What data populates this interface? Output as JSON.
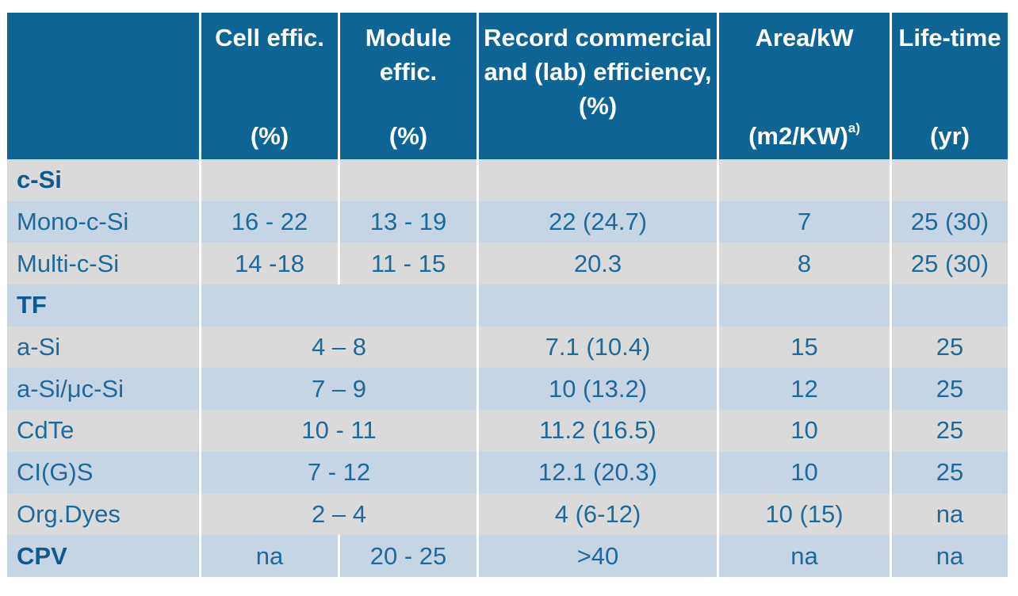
{
  "header": {
    "col0": "",
    "cell": {
      "label": "Cell effic.",
      "unit": "(%)"
    },
    "module": {
      "label": "Module effic.",
      "unit": "(%)"
    },
    "record": {
      "label": "Record commercial and (lab) efficiency,",
      "unit": "(%)"
    },
    "area": {
      "label": "Area/kW",
      "unit": "(m2/KW)",
      "unit_sup": "a)"
    },
    "life": {
      "label": "Life-time",
      "unit": "(yr)"
    }
  },
  "rows": [
    {
      "type": "section",
      "name": "c-Si",
      "values": [
        "",
        "",
        "",
        "",
        ""
      ]
    },
    {
      "type": "data",
      "name": "Mono-c-Si",
      "values": [
        "16 - 22",
        "13 - 19",
        "22 (24.7)",
        "7",
        "25 (30)"
      ]
    },
    {
      "type": "data",
      "name": "Multi-c-Si",
      "values": [
        "14 -18",
        "11 - 15",
        "20.3",
        "8",
        "25 (30)"
      ]
    },
    {
      "type": "section",
      "name": "TF",
      "values": [
        "",
        "",
        "",
        ""
      ]
    },
    {
      "type": "data",
      "name": "a-Si",
      "values": [
        "4 – 8",
        "7.1 (10.4)",
        "15",
        "25"
      ]
    },
    {
      "type": "data",
      "name": "a-Si/μc-Si",
      "values": [
        "7 – 9",
        "10 (13.2)",
        "12",
        "25"
      ]
    },
    {
      "type": "data",
      "name": "CdTe",
      "values": [
        "10 - 11",
        "11.2 (16.5)",
        "10",
        "25"
      ]
    },
    {
      "type": "data",
      "name": "CI(G)S",
      "values": [
        "7 - 12",
        "12.1 (20.3)",
        "10",
        "25"
      ]
    },
    {
      "type": "data",
      "name": "Org.Dyes",
      "values": [
        "2 – 4",
        "4 (6-12)",
        "10 (15)",
        "na"
      ]
    },
    {
      "type": "section",
      "name": "CPV",
      "values": [
        "na",
        "20 - 25",
        ">40",
        "na",
        "na"
      ]
    }
  ]
}
